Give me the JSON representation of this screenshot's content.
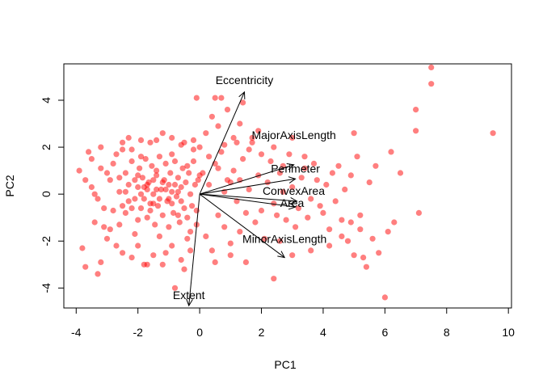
{
  "chart_data": {
    "type": "scatter",
    "title": "",
    "xlabel": "PC1",
    "ylabel": "PC2",
    "xlim": [
      -4.4,
      10.1
    ],
    "ylim": [
      -4.85,
      5.55
    ],
    "x_ticks": [
      -4,
      -2,
      0,
      2,
      4,
      6,
      8,
      10
    ],
    "y_ticks": [
      -4,
      -2,
      0,
      2,
      4
    ],
    "x_tick_labels": [
      "-4",
      "-2",
      "0",
      "2",
      "4",
      "6",
      "8",
      "10"
    ],
    "y_tick_labels": [
      "-4",
      "-2",
      "0",
      "2",
      "4"
    ],
    "grid": false,
    "point_color": "#ff0000",
    "point_opacity": 0.5,
    "arrow_color": "#000000",
    "points": [
      [
        -3.9,
        1.0
      ],
      [
        -3.8,
        -2.3
      ],
      [
        -3.7,
        -3.1
      ],
      [
        -3.6,
        1.8
      ],
      [
        -3.5,
        0.3
      ],
      [
        -3.4,
        -1.2
      ],
      [
        -3.3,
        -3.4
      ],
      [
        -3.2,
        2.0
      ],
      [
        -3.1,
        -0.6
      ],
      [
        -3.0,
        0.9
      ],
      [
        -2.9,
        -1.5
      ],
      [
        -2.8,
        1.3
      ],
      [
        -2.7,
        -2.2
      ],
      [
        -2.6,
        0.1
      ],
      [
        -2.5,
        1.9
      ],
      [
        -2.4,
        -0.8
      ],
      [
        -2.3,
        2.4
      ],
      [
        -2.2,
        -2.7
      ],
      [
        -2.1,
        0.6
      ],
      [
        -2.0,
        -1.1
      ],
      [
        -1.9,
        1.6
      ],
      [
        -1.8,
        -3.0
      ],
      [
        -1.7,
        0.2
      ],
      [
        -1.6,
        2.2
      ],
      [
        -1.5,
        -0.4
      ],
      [
        -1.4,
        1.0
      ],
      [
        -1.3,
        -1.8
      ],
      [
        -1.2,
        2.6
      ],
      [
        -1.1,
        -2.5
      ],
      [
        -1.0,
        0.4
      ],
      [
        -0.9,
        1.7
      ],
      [
        -0.8,
        -4.0
      ],
      [
        -0.7,
        -0.9
      ],
      [
        -0.6,
        2.1
      ],
      [
        -0.5,
        -3.2
      ],
      [
        -0.4,
        1.2
      ],
      [
        -0.3,
        -1.6
      ],
      [
        -0.2,
        1.9
      ],
      [
        -0.1,
        -0.7
      ],
      [
        0.0,
        0.8
      ],
      [
        -3.5,
        1.5
      ],
      [
        -3.3,
        -0.2
      ],
      [
        -3.0,
        -1.9
      ],
      [
        -2.9,
        0.6
      ],
      [
        -2.7,
        1.7
      ],
      [
        -2.6,
        -1.3
      ],
      [
        -2.4,
        0.9
      ],
      [
        -2.3,
        -0.3
      ],
      [
        -2.2,
        1.4
      ],
      [
        -2.1,
        -1.7
      ],
      [
        -2.0,
        0.3
      ],
      [
        -1.95,
        1.1
      ],
      [
        -1.9,
        -0.6
      ],
      [
        -1.85,
        0.7
      ],
      [
        -1.8,
        -0.2
      ],
      [
        -1.75,
        1.5
      ],
      [
        -1.7,
        -1.0
      ],
      [
        -1.65,
        0.5
      ],
      [
        -1.6,
        -0.4
      ],
      [
        -1.55,
        1.2
      ],
      [
        -1.5,
        0.0
      ],
      [
        -1.45,
        -1.3
      ],
      [
        -1.4,
        0.8
      ],
      [
        -1.35,
        -0.5
      ],
      [
        -1.3,
        1.6
      ],
      [
        -1.25,
        0.2
      ],
      [
        -1.2,
        -0.9
      ],
      [
        -1.15,
        0.6
      ],
      [
        -1.1,
        1.3
      ],
      [
        -1.05,
        -0.3
      ],
      [
        -1.0,
        -1.4
      ],
      [
        -0.95,
        0.9
      ],
      [
        -0.9,
        0.1
      ],
      [
        -0.85,
        -0.8
      ],
      [
        -0.8,
        1.4
      ],
      [
        -0.75,
        -0.1
      ],
      [
        -0.7,
        0.7
      ],
      [
        -0.65,
        -1.2
      ],
      [
        -0.6,
        0.3
      ],
      [
        -0.55,
        1.1
      ],
      [
        -0.5,
        -0.6
      ],
      [
        -0.45,
        0.5
      ],
      [
        -0.4,
        -1.0
      ],
      [
        -0.35,
        0.9
      ],
      [
        -0.3,
        0.0
      ],
      [
        -0.25,
        -0.5
      ],
      [
        -0.2,
        1.4
      ],
      [
        -0.15,
        0.4
      ],
      [
        -0.1,
        -1.3
      ],
      [
        -0.05,
        0.6
      ],
      [
        -2.5,
        -0.5
      ],
      [
        -2.3,
        0.4
      ],
      [
        -2.1,
        -0.2
      ],
      [
        -1.9,
        0.0
      ],
      [
        -1.7,
        0.4
      ],
      [
        -1.5,
        0.6
      ],
      [
        -1.3,
        -0.2
      ],
      [
        -1.1,
        0.2
      ],
      [
        -0.9,
        -0.4
      ],
      [
        -0.7,
        0.1
      ],
      [
        -2.4,
        0.1
      ],
      [
        -2.2,
        -0.6
      ],
      [
        -2.0,
        0.8
      ],
      [
        -1.8,
        0.3
      ],
      [
        -1.6,
        -0.7
      ],
      [
        -1.4,
        0.2
      ],
      [
        -1.2,
        0.5
      ],
      [
        -1.0,
        -0.2
      ],
      [
        -0.8,
        0.4
      ],
      [
        -0.6,
        -0.3
      ],
      [
        0.1,
        0.9
      ],
      [
        0.2,
        -1.8
      ],
      [
        0.3,
        0.4
      ],
      [
        0.4,
        -2.4
      ],
      [
        0.5,
        1.3
      ],
      [
        0.6,
        -0.9
      ],
      [
        0.7,
        1.8
      ],
      [
        0.8,
        -1.4
      ],
      [
        0.9,
        0.6
      ],
      [
        1.0,
        -2.1
      ],
      [
        1.1,
        1.0
      ],
      [
        1.2,
        -0.3
      ],
      [
        1.3,
        -1.6
      ],
      [
        1.4,
        1.5
      ],
      [
        1.5,
        -2.9
      ],
      [
        1.6,
        0.2
      ],
      [
        1.7,
        2.2
      ],
      [
        1.8,
        -1.2
      ],
      [
        1.9,
        0.8
      ],
      [
        2.0,
        -0.7
      ],
      [
        0.2,
        2.6
      ],
      [
        0.4,
        3.3
      ],
      [
        0.6,
        2.9
      ],
      [
        0.9,
        3.6
      ],
      [
        1.1,
        2.4
      ],
      [
        0.5,
        4.1
      ],
      [
        1.3,
        3.0
      ],
      [
        0.8,
        2.1
      ],
      [
        1.6,
        1.9
      ],
      [
        1.9,
        2.7
      ],
      [
        -0.1,
        4.1
      ],
      [
        0.7,
        4.1
      ],
      [
        1.2,
        2.2
      ],
      [
        1.4,
        3.9
      ],
      [
        1.7,
        2.4
      ],
      [
        2.0,
        1.7
      ],
      [
        2.4,
        2.0
      ],
      [
        2.7,
        1.2
      ],
      [
        3.0,
        2.4
      ],
      [
        3.4,
        1.6
      ],
      [
        2.2,
        0.5
      ],
      [
        2.4,
        -0.4
      ],
      [
        2.6,
        0.9
      ],
      [
        2.8,
        -1.1
      ],
      [
        3.0,
        0.3
      ],
      [
        3.2,
        -0.6
      ],
      [
        3.4,
        1.1
      ],
      [
        3.6,
        -0.2
      ],
      [
        3.8,
        0.6
      ],
      [
        4.0,
        -0.8
      ],
      [
        2.1,
        -1.9
      ],
      [
        2.3,
        1.4
      ],
      [
        2.5,
        -0.9
      ],
      [
        2.7,
        0.1
      ],
      [
        2.9,
        1.7
      ],
      [
        3.1,
        -1.4
      ],
      [
        3.3,
        0.7
      ],
      [
        3.5,
        -1.0
      ],
      [
        3.7,
        1.3
      ],
      [
        3.9,
        -0.5
      ],
      [
        4.1,
        0.4
      ],
      [
        4.2,
        -1.5
      ],
      [
        4.3,
        0.9
      ],
      [
        4.4,
        -0.3
      ],
      [
        4.5,
        1.2
      ],
      [
        4.6,
        -1.1
      ],
      [
        4.7,
        0.2
      ],
      [
        4.8,
        -2.0
      ],
      [
        4.9,
        0.8
      ],
      [
        5.0,
        -2.6
      ],
      [
        5.1,
        1.6
      ],
      [
        5.2,
        -0.9
      ],
      [
        5.3,
        -2.7
      ],
      [
        5.4,
        -3.1
      ],
      [
        5.5,
        0.5
      ],
      [
        5.6,
        -1.9
      ],
      [
        5.8,
        -2.5
      ],
      [
        6.0,
        -4.4
      ],
      [
        6.1,
        -1.6
      ],
      [
        6.3,
        -1.2
      ],
      [
        5.0,
        2.6
      ],
      [
        5.7,
        1.2
      ],
      [
        6.2,
        1.8
      ],
      [
        6.5,
        0.9
      ],
      [
        7.0,
        2.7
      ],
      [
        7.0,
        3.6
      ],
      [
        7.1,
        -0.8
      ],
      [
        7.5,
        5.4
      ],
      [
        7.5,
        4.7
      ],
      [
        9.5,
        2.6
      ],
      [
        4.2,
        -2.2
      ],
      [
        4.6,
        -1.8
      ],
      [
        4.9,
        -1.2
      ],
      [
        5.2,
        -1.5
      ],
      [
        3.6,
        -2.4
      ],
      [
        3.0,
        -2.6
      ],
      [
        2.4,
        -3.6
      ],
      [
        2.6,
        -2.0
      ],
      [
        1.0,
        -2.6
      ],
      [
        0.5,
        -2.9
      ],
      [
        -1.7,
        -3.0
      ],
      [
        -1.2,
        -3.0
      ],
      [
        -0.6,
        -2.8
      ],
      [
        -0.3,
        -2.4
      ],
      [
        -2.5,
        -2.5
      ],
      [
        -3.2,
        -2.9
      ],
      [
        -2.0,
        -2.2
      ],
      [
        -1.5,
        -2.6
      ],
      [
        -0.9,
        -2.2
      ],
      [
        -0.4,
        -1.9
      ],
      [
        -3.7,
        0.6
      ],
      [
        -3.4,
        0.0
      ],
      [
        -3.2,
        1.1
      ],
      [
        -3.1,
        -1.4
      ],
      [
        -2.8,
        -0.7
      ],
      [
        -2.6,
        0.7
      ],
      [
        -2.5,
        2.2
      ],
      [
        -2.2,
        1.9
      ],
      [
        -1.9,
        2.3
      ],
      [
        -1.4,
        2.3
      ],
      [
        -0.9,
        2.4
      ],
      [
        -0.5,
        2.2
      ],
      [
        -0.2,
        2.3
      ],
      [
        0.0,
        2.0
      ],
      [
        0.3,
        1.6
      ],
      [
        0.6,
        1.1
      ],
      [
        0.8,
        0.1
      ],
      [
        1.0,
        0.5
      ],
      [
        1.3,
        0.6
      ],
      [
        1.5,
        -0.8
      ]
    ],
    "loadings": [
      {
        "label": "Eccentricity",
        "x": 1.45,
        "y": 4.35
      },
      {
        "label": "MajorAxisLength",
        "x": 3.05,
        "y": 1.25
      },
      {
        "label": "Perimeter",
        "x": 3.1,
        "y": 0.65
      },
      {
        "label": "ConvexArea",
        "x": 3.15,
        "y": -0.3
      },
      {
        "label": "Area",
        "x": 3.1,
        "y": -0.55
      },
      {
        "label": "MinorAxisLength",
        "x": 2.75,
        "y": -2.7
      },
      {
        "label": "Extent",
        "x": -0.35,
        "y": -4.75
      }
    ]
  }
}
